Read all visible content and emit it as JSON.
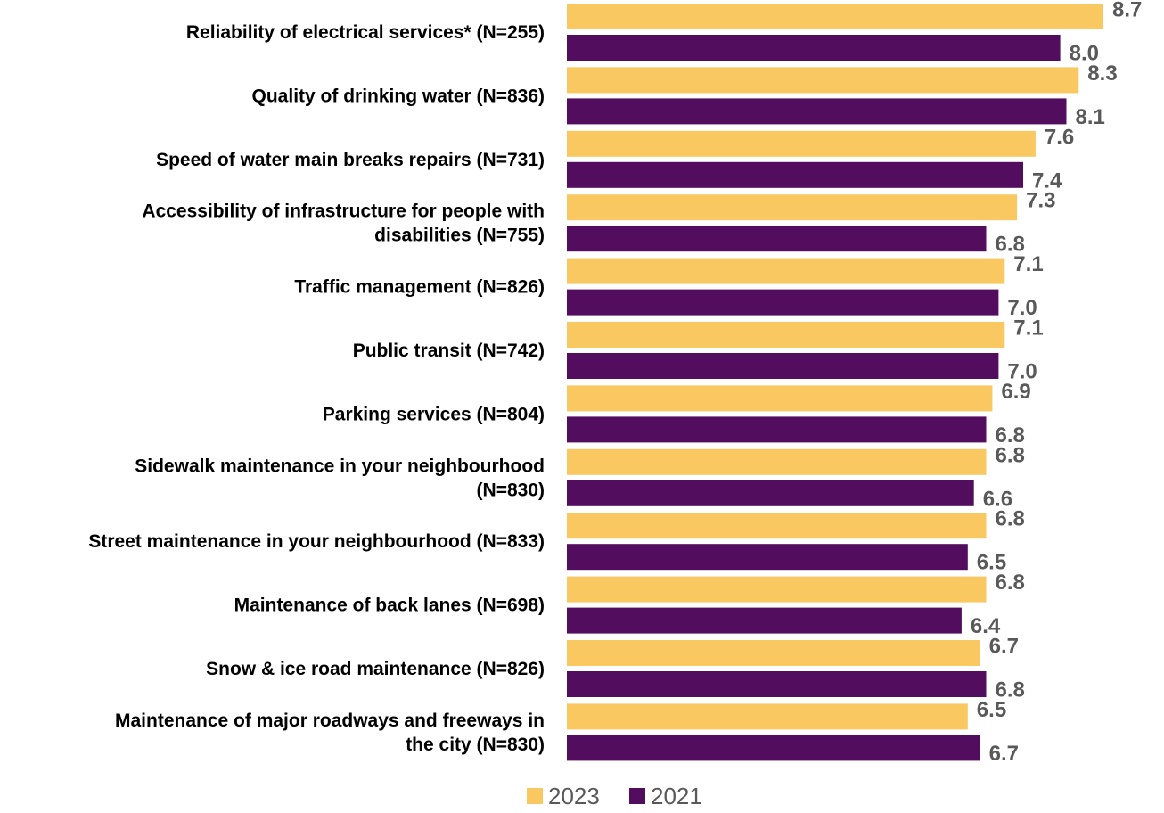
{
  "chart_data": {
    "type": "bar",
    "orientation": "horizontal",
    "categories": [
      [
        "Reliability of electrical services* (N=255)"
      ],
      [
        "Quality of drinking water (N=836)"
      ],
      [
        "Speed of water main breaks repairs (N=731)"
      ],
      [
        "Accessibility of infrastructure for people with",
        "disabilities (N=755)"
      ],
      [
        "Traffic management (N=826)"
      ],
      [
        "Public transit (N=742)"
      ],
      [
        "Parking services (N=804)"
      ],
      [
        "Sidewalk maintenance in your neighbourhood",
        "(N=830)"
      ],
      [
        "Street maintenance in your neighbourhood (N=833)"
      ],
      [
        "Maintenance of back lanes (N=698)"
      ],
      [
        "Snow & ice road maintenance (N=826)"
      ],
      [
        "Maintenance of major roadways and freeways in",
        "the city (N=830)"
      ]
    ],
    "series": [
      {
        "name": "2023",
        "color": "#F9C860",
        "values": [
          8.7,
          8.3,
          7.6,
          7.3,
          7.1,
          7.1,
          6.9,
          6.8,
          6.8,
          6.8,
          6.7,
          6.5
        ],
        "labels": [
          "8.7",
          "8.3",
          "7.6",
          "7.3",
          "7.1",
          "7.1",
          "6.9",
          "6.8",
          "6.8",
          "6.8",
          "6.7",
          "6.5"
        ]
      },
      {
        "name": "2021",
        "color": "#520D5E",
        "values": [
          8.0,
          8.1,
          7.4,
          6.8,
          7.0,
          7.0,
          6.8,
          6.6,
          6.5,
          6.4,
          6.8,
          6.7
        ],
        "labels": [
          "8.0",
          "8.1",
          "7.4",
          "6.8",
          "7.0",
          "7.0",
          "6.8",
          "6.6",
          "6.5",
          "6.4",
          "6.8",
          "6.7"
        ]
      }
    ],
    "xlim": [
      0,
      8.7
    ],
    "axes_visible": false,
    "grid": false,
    "legend": "bottom-center",
    "title": "",
    "xlabel": "",
    "ylabel": ""
  }
}
